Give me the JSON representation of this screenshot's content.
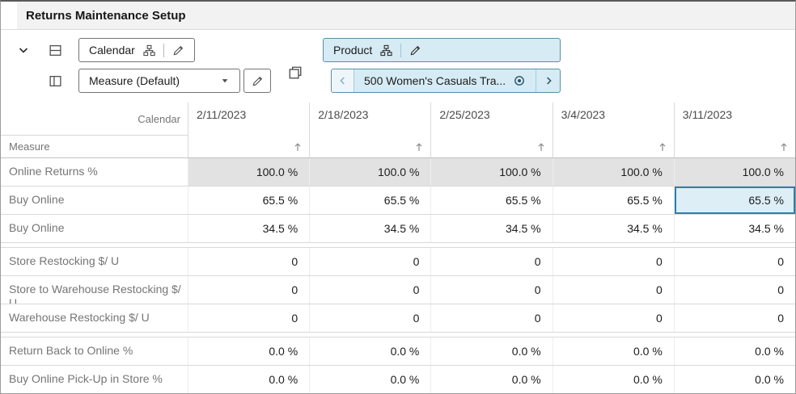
{
  "title": "Returns Maintenance Setup",
  "toolbar": {
    "calendar_label": "Calendar",
    "measure_label": "Measure (Default)",
    "product_label": "Product",
    "product_selection": "500 Women's Casuals Tra..."
  },
  "grid": {
    "corner_label": "Calendar",
    "row_axis_label": "Measure",
    "columns": [
      "2/11/2023",
      "2/18/2023",
      "2/25/2023",
      "3/4/2023",
      "3/11/2023"
    ],
    "groups": [
      {
        "rows": [
          {
            "label": "Online Returns %",
            "values": [
              "100.0 %",
              "100.0 %",
              "100.0 %",
              "100.0 %",
              "100.0 %"
            ],
            "shaded": true
          },
          {
            "label": "Buy Online",
            "values": [
              "65.5 %",
              "65.5 %",
              "65.5 %",
              "65.5 %",
              "65.5 %"
            ]
          },
          {
            "label": "Buy Online",
            "values": [
              "34.5 %",
              "34.5 %",
              "34.5 %",
              "34.5 %",
              "34.5 %"
            ]
          }
        ]
      },
      {
        "rows": [
          {
            "label": "Store Restocking $/ U",
            "values": [
              "0",
              "0",
              "0",
              "0",
              "0"
            ]
          },
          {
            "label": "Store to Warehouse Restocking $/ U",
            "values": [
              "0",
              "0",
              "0",
              "0",
              "0"
            ]
          },
          {
            "label": "Warehouse Restocking $/ U",
            "values": [
              "0",
              "0",
              "0",
              "0",
              "0"
            ]
          }
        ]
      },
      {
        "rows": [
          {
            "label": "Return Back to Online %",
            "values": [
              "0.0 %",
              "0.0 %",
              "0.0 %",
              "0.0 %",
              "0.0 %"
            ]
          },
          {
            "label": "Buy Online Pick-Up in Store %",
            "values": [
              "0.0 %",
              "0.0 %",
              "0.0 %",
              "0.0 %",
              "0.0 %"
            ]
          }
        ]
      }
    ],
    "selected_cell": {
      "group": 0,
      "row": 1,
      "col": 4
    }
  },
  "colors": {
    "accent_fill": "#d6ebf4",
    "accent_border": "#5a8fa5",
    "selected_fill": "#ddeef7",
    "selected_border": "#2b7fae",
    "shaded_cell": "#e2e2e2"
  }
}
